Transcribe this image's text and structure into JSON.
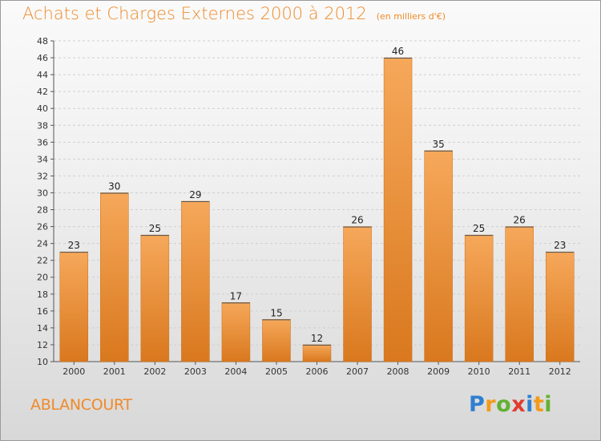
{
  "title": "Achats et Charges Externes 2000 à 2012",
  "unit": "(en milliers d'€)",
  "commune": "ABLANCOURT",
  "logo": {
    "text": "Proxiti",
    "letters": [
      {
        "ch": "P",
        "color": "#2f7fd0"
      },
      {
        "ch": "r",
        "color": "#f39a1b"
      },
      {
        "ch": "o",
        "color": "#63b132"
      },
      {
        "ch": "x",
        "color": "#e03b2f"
      },
      {
        "ch": "i",
        "color": "#2f7fd0"
      },
      {
        "ch": "t",
        "color": "#f39a1b"
      },
      {
        "ch": "i",
        "color": "#63b132"
      }
    ]
  },
  "colors": {
    "accent": "#ef8a2a",
    "bar_top": "#f6a85a",
    "bar_bottom": "#d9781e"
  },
  "chart_data": {
    "type": "bar",
    "categories": [
      "2000",
      "2001",
      "2002",
      "2003",
      "2004",
      "2005",
      "2006",
      "2007",
      "2008",
      "2009",
      "2010",
      "2011",
      "2012"
    ],
    "values": [
      23,
      30,
      25,
      29,
      17,
      15,
      12,
      26,
      46,
      35,
      25,
      26,
      23
    ],
    "ylim": [
      10,
      48
    ],
    "yticks": [
      10,
      12,
      14,
      16,
      18,
      20,
      22,
      24,
      26,
      28,
      30,
      32,
      34,
      36,
      38,
      40,
      42,
      44,
      46,
      48
    ],
    "grid": true,
    "data_labels": true
  }
}
